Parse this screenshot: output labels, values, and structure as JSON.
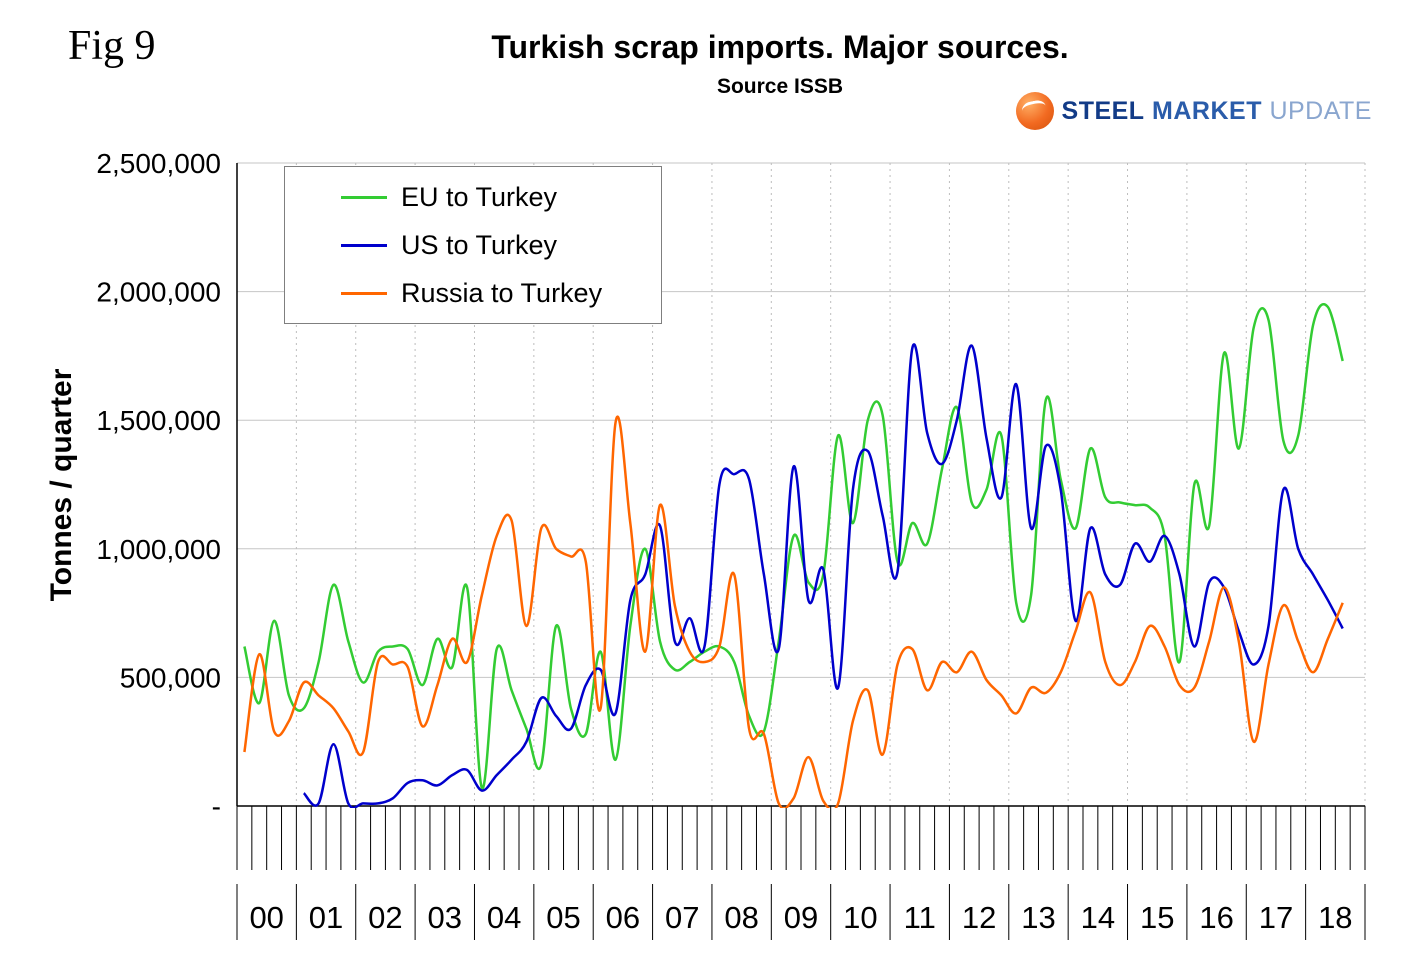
{
  "fig_label": "Fig 9",
  "title": "Turkish scrap imports. Major sources.",
  "subtitle": "Source ISSB",
  "y_axis_label": "Tonnes / quarter",
  "logo": {
    "steel": "STEEL",
    "market": "MARKET",
    "update": "UPDATE",
    "ball_color": "#f26a21",
    "steel_color": "#123b87",
    "market_color": "#2a5caa",
    "update_color": "#8aa6cf"
  },
  "chart_data": {
    "type": "line",
    "title": "Turkish scrap imports. Major sources.",
    "subtitle": "Source ISSB",
    "xlabel": "",
    "ylabel": "Tonnes / quarter",
    "x_start_year": 2000,
    "quarters_per_year": 4,
    "x_year_labels": [
      "00",
      "01",
      "02",
      "03",
      "04",
      "05",
      "06",
      "07",
      "08",
      "09",
      "10",
      "11",
      "12",
      "13",
      "14",
      "15",
      "16",
      "17",
      "18"
    ],
    "ylim": [
      0,
      2500000
    ],
    "grid": {
      "horizontal": "solid",
      "vertical": "dotted"
    },
    "legend_position": "top-left",
    "y_ticks": [
      {
        "value": 2500000,
        "label": "2,500,000"
      },
      {
        "value": 2000000,
        "label": "2,000,000"
      },
      {
        "value": 1500000,
        "label": "1,500,000"
      },
      {
        "value": 1000000,
        "label": "1,000,000"
      },
      {
        "value": 500000,
        "label": "500,000"
      },
      {
        "value": 0,
        "label": "-"
      }
    ],
    "series": [
      {
        "name": "EU to Turkey",
        "color": "#33cc33",
        "values": [
          620000,
          400000,
          720000,
          430000,
          380000,
          560000,
          860000,
          640000,
          480000,
          600000,
          620000,
          610000,
          470000,
          650000,
          540000,
          850000,
          70000,
          610000,
          450000,
          300000,
          160000,
          700000,
          380000,
          280000,
          600000,
          180000,
          700000,
          1000000,
          640000,
          530000,
          560000,
          600000,
          620000,
          560000,
          350000,
          290000,
          640000,
          1050000,
          870000,
          900000,
          1440000,
          1100000,
          1500000,
          1520000,
          950000,
          1100000,
          1020000,
          1310000,
          1550000,
          1180000,
          1230000,
          1440000,
          790000,
          820000,
          1580000,
          1270000,
          1080000,
          1390000,
          1200000,
          1180000,
          1170000,
          1160000,
          1050000,
          560000,
          1250000,
          1090000,
          1760000,
          1390000,
          1860000,
          1890000,
          1420000,
          1440000,
          1870000,
          1940000,
          1730000
        ]
      },
      {
        "name": "US to Turkey",
        "color": "#0000cc",
        "values": [
          null,
          null,
          null,
          null,
          50000,
          10000,
          240000,
          10000,
          10000,
          10000,
          30000,
          90000,
          100000,
          80000,
          120000,
          140000,
          60000,
          120000,
          180000,
          250000,
          420000,
          350000,
          300000,
          470000,
          530000,
          360000,
          800000,
          900000,
          1090000,
          640000,
          730000,
          620000,
          1250000,
          1290000,
          1270000,
          900000,
          610000,
          1320000,
          800000,
          920000,
          460000,
          1230000,
          1380000,
          1130000,
          910000,
          1780000,
          1450000,
          1330000,
          1500000,
          1790000,
          1430000,
          1200000,
          1640000,
          1080000,
          1400000,
          1230000,
          720000,
          1080000,
          900000,
          860000,
          1020000,
          950000,
          1050000,
          900000,
          620000,
          870000,
          850000,
          680000,
          550000,
          700000,
          1230000,
          1000000,
          900000,
          800000,
          690000
        ]
      },
      {
        "name": "Russia to Turkey",
        "color": "#ff6600",
        "values": [
          210000,
          590000,
          290000,
          330000,
          480000,
          430000,
          380000,
          290000,
          210000,
          560000,
          550000,
          540000,
          310000,
          470000,
          650000,
          560000,
          820000,
          1050000,
          1110000,
          700000,
          1080000,
          1000000,
          970000,
          950000,
          380000,
          1490000,
          1100000,
          600000,
          1170000,
          780000,
          600000,
          560000,
          620000,
          900000,
          300000,
          280000,
          10000,
          30000,
          190000,
          20000,
          10000,
          330000,
          450000,
          200000,
          550000,
          610000,
          450000,
          560000,
          520000,
          600000,
          490000,
          430000,
          360000,
          460000,
          440000,
          520000,
          680000,
          830000,
          560000,
          470000,
          560000,
          700000,
          620000,
          470000,
          460000,
          640000,
          850000,
          640000,
          250000,
          550000,
          780000,
          640000,
          520000,
          650000,
          790000
        ]
      }
    ]
  }
}
